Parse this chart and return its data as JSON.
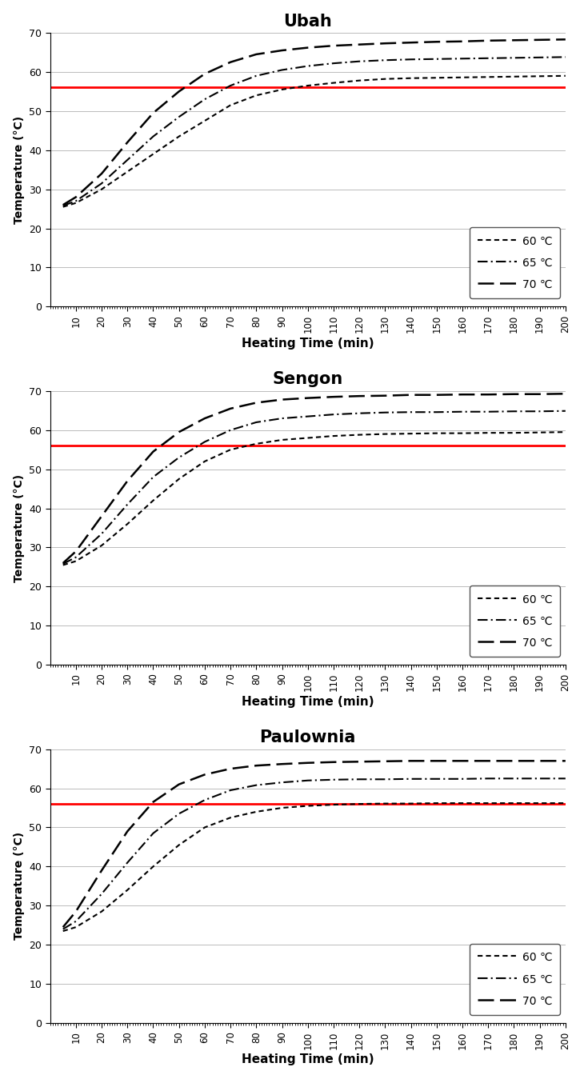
{
  "titles": [
    "Ubah",
    "Sengon",
    "Paulownia"
  ],
  "xlabel": "Heating Time (min)",
  "ylabel": "Temperature (°C)",
  "xlim": [
    0,
    200
  ],
  "ylim": [
    0,
    70
  ],
  "yticks": [
    0,
    10,
    20,
    30,
    40,
    50,
    60,
    70
  ],
  "xticks": [
    10,
    20,
    30,
    40,
    50,
    60,
    70,
    80,
    90,
    100,
    110,
    120,
    130,
    140,
    150,
    160,
    170,
    180,
    190,
    200
  ],
  "red_line_y_ubah": 56,
  "red_line_y_sengon": 56,
  "red_line_y_paulownia": 56,
  "red_line_color": "#ff0000",
  "line_styles_60": "--",
  "line_styles_65": "-.",
  "line_styles_70": "--",
  "line_dash_60": [
    4,
    3
  ],
  "line_dash_65": [
    6,
    2,
    1,
    2
  ],
  "line_dash_70": [
    10,
    3
  ],
  "line_color": "#000000",
  "line_width": 1.5,
  "background_color": "#ffffff",
  "x_data": [
    5,
    10,
    20,
    30,
    40,
    50,
    60,
    70,
    80,
    90,
    100,
    110,
    120,
    130,
    140,
    150,
    160,
    170,
    180,
    190,
    200
  ],
  "ubah": {
    "c60": [
      25.5,
      26.5,
      30.0,
      34.5,
      39.0,
      43.5,
      47.5,
      51.5,
      54.0,
      55.5,
      56.5,
      57.2,
      57.8,
      58.2,
      58.4,
      58.5,
      58.6,
      58.7,
      58.8,
      58.9,
      59.0
    ],
    "c65": [
      25.8,
      27.0,
      31.5,
      37.5,
      43.5,
      48.5,
      53.0,
      56.5,
      59.0,
      60.5,
      61.5,
      62.2,
      62.7,
      63.0,
      63.2,
      63.3,
      63.4,
      63.5,
      63.6,
      63.7,
      63.8
    ],
    "c70": [
      26.0,
      28.0,
      34.0,
      42.0,
      49.5,
      55.0,
      59.5,
      62.5,
      64.5,
      65.5,
      66.2,
      66.7,
      67.0,
      67.3,
      67.5,
      67.7,
      67.8,
      68.0,
      68.1,
      68.2,
      68.3
    ]
  },
  "sengon": {
    "c60": [
      25.5,
      26.5,
      30.5,
      36.0,
      42.0,
      47.5,
      52.0,
      55.0,
      56.5,
      57.5,
      58.0,
      58.5,
      58.8,
      59.0,
      59.1,
      59.2,
      59.2,
      59.3,
      59.3,
      59.4,
      59.5
    ],
    "c65": [
      25.8,
      27.5,
      33.5,
      41.0,
      48.0,
      53.0,
      57.0,
      60.0,
      62.0,
      63.0,
      63.5,
      64.0,
      64.3,
      64.5,
      64.6,
      64.6,
      64.7,
      64.7,
      64.8,
      64.8,
      64.9
    ],
    "c70": [
      26.0,
      29.0,
      38.0,
      47.0,
      54.5,
      59.5,
      63.0,
      65.5,
      67.0,
      67.8,
      68.2,
      68.5,
      68.7,
      68.8,
      69.0,
      69.0,
      69.1,
      69.1,
      69.2,
      69.2,
      69.3
    ]
  },
  "paulownia": {
    "c60": [
      23.5,
      24.5,
      28.5,
      34.0,
      40.0,
      45.5,
      50.0,
      52.5,
      54.0,
      55.0,
      55.5,
      55.8,
      56.0,
      56.1,
      56.1,
      56.2,
      56.2,
      56.2,
      56.2,
      56.2,
      56.2
    ],
    "c65": [
      24.0,
      26.0,
      33.0,
      41.0,
      48.5,
      53.5,
      57.0,
      59.5,
      60.8,
      61.5,
      62.0,
      62.2,
      62.3,
      62.3,
      62.4,
      62.4,
      62.4,
      62.5,
      62.5,
      62.5,
      62.5
    ],
    "c70": [
      24.5,
      28.5,
      39.0,
      49.0,
      56.5,
      61.0,
      63.5,
      65.0,
      65.8,
      66.2,
      66.5,
      66.7,
      66.8,
      66.9,
      67.0,
      67.0,
      67.0,
      67.0,
      67.0,
      67.0,
      67.0
    ]
  }
}
